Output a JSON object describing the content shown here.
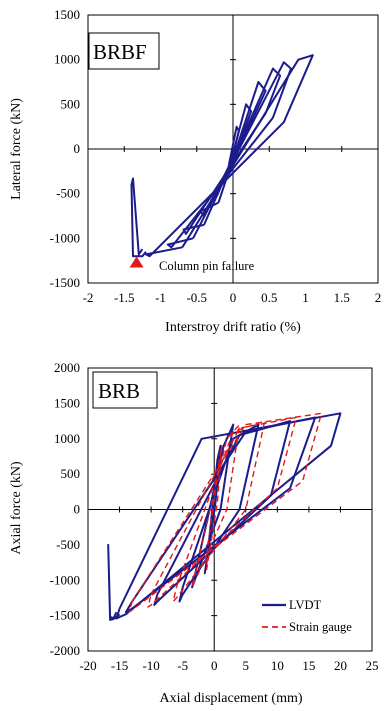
{
  "chart_data": [
    {
      "type": "line",
      "panel_label": "BRBF",
      "xlabel": "Interstroy drift ratio (%)",
      "ylabel": "Lateral force (kN)",
      "xlim": [
        -2,
        2
      ],
      "ylim": [
        -1500,
        1500
      ],
      "xticks": [
        "-2",
        "-1.5",
        "-1",
        "-0.5",
        "0",
        "0.5",
        "1",
        "1.5",
        "2"
      ],
      "yticks": [
        "1500",
        "1000",
        "500",
        "0",
        "-500",
        "-1000",
        "-1500"
      ],
      "grid": false,
      "annotation": {
        "text": "Column pin failure",
        "marker": "red-triangle",
        "x": -1.33,
        "y": -1270
      },
      "colors": {
        "series": "#1c1c8c",
        "marker": "#e31a1a"
      },
      "series": [
        {
          "color": "#1c1c8c",
          "loops": [
            {
              "x": [
                -0.05,
                0.05,
                0.08,
                0.02,
                -0.08,
                -0.05
              ],
              "y": [
                -150,
                250,
                200,
                0,
                -300,
                -150
              ]
            },
            {
              "x": [
                -0.1,
                0.18,
                0.25,
                0.15,
                -0.22,
                -0.25,
                -0.1
              ],
              "y": [
                -350,
                500,
                420,
                200,
                -520,
                -480,
                -350
              ]
            },
            {
              "x": [
                -0.2,
                0.35,
                0.45,
                0.28,
                -0.4,
                -0.45,
                -0.2
              ],
              "y": [
                -600,
                750,
                650,
                350,
                -750,
                -700,
                -600
              ]
            },
            {
              "x": [
                -0.4,
                0.55,
                0.65,
                0.45,
                -0.65,
                -0.68,
                -0.4
              ],
              "y": [
                -850,
                900,
                820,
                400,
                -950,
                -900,
                -850
              ]
            },
            {
              "x": [
                -0.55,
                0.7,
                0.8,
                0.55,
                -0.85,
                -0.9,
                -0.55
              ],
              "y": [
                -1000,
                970,
                900,
                350,
                -1100,
                -1070,
                -1000
              ]
            },
            {
              "x": [
                -0.7,
                0.9,
                1.1,
                0.7,
                -1.15,
                -1.2,
                -0.7
              ],
              "y": [
                -1100,
                1000,
                1050,
                300,
                -1200,
                -1180,
                -1100
              ]
            }
          ],
          "tail": {
            "x": [
              -1.2,
              -1.25,
              -1.38,
              -1.4,
              -1.38,
              -1.3,
              -1.25
            ],
            "y": [
              -1150,
              -1200,
              -1200,
              -400,
              -330,
              -1180,
              -1120
            ]
          }
        }
      ]
    },
    {
      "type": "line",
      "panel_label": "BRB",
      "xlabel": "Axial displacement (mm)",
      "ylabel": "Axial force (kN)",
      "xlim": [
        -20,
        25
      ],
      "ylim": [
        -2000,
        2000
      ],
      "xticks": [
        "-20",
        "-15",
        "-10",
        "-5",
        "0",
        "5",
        "10",
        "15",
        "20",
        "25"
      ],
      "yticks": [
        "2000",
        "1500",
        "1000",
        "500",
        "0",
        "-500",
        "-1000",
        "-1500",
        "-2000"
      ],
      "grid": false,
      "legend": {
        "position": "bottom-right",
        "entries": [
          "LVDT",
          "Strain gauge"
        ]
      },
      "series": [
        {
          "name": "LVDT",
          "color": "#1c1c8c",
          "dash": "solid",
          "loops": [
            {
              "x": [
                -1,
                0.5,
                1,
                0.2,
                -1.5,
                -1
              ],
              "y": [
                -600,
                700,
                900,
                100,
                -900,
                -600
              ]
            },
            {
              "x": [
                -3,
                1.5,
                3,
                1,
                -3.5,
                -3
              ],
              "y": [
                -900,
                900,
                1200,
                0,
                -1100,
                -900
              ]
            },
            {
              "x": [
                -5,
                3,
                7,
                4,
                -5,
                -5.5,
                -5
              ],
              "y": [
                -1100,
                1000,
                1200,
                0,
                -1200,
                -1300,
                -1100
              ]
            },
            {
              "x": [
                -9,
                4,
                12,
                9,
                -9,
                -9.5,
                -9
              ],
              "y": [
                -1200,
                1050,
                1250,
                200,
                -1300,
                -1350,
                -1200
              ]
            },
            {
              "x": [
                -13,
                5,
                16,
                12,
                -13,
                -14,
                -13
              ],
              "y": [
                -1300,
                1100,
                1300,
                300,
                -1400,
                -1450,
                -1300
              ]
            },
            {
              "x": [
                -15,
                -2,
                20,
                18.5,
                -14,
                -15.5,
                -15
              ],
              "y": [
                -1400,
                1000,
                1360,
                900,
                -1480,
                -1540,
                -1400
              ]
            }
          ],
          "tail": {
            "x": [
              -15.5,
              -16,
              -16.5,
              -16.8,
              -16.5,
              -15.8,
              -15
            ],
            "y": [
              -1450,
              -1550,
              -1560,
              -500,
              -1520,
              -1540,
              -1480
            ]
          }
        },
        {
          "name": "Strain gauge",
          "color": "#e31a1a",
          "dash": "dashed",
          "loops": [
            {
              "x": [
                -1,
                0.8,
                1.2,
                0.5,
                -1.2,
                -1
              ],
              "y": [
                -500,
                700,
                900,
                100,
                -850,
                -500
              ]
            },
            {
              "x": [
                -3,
                2,
                4,
                2,
                -3.5,
                -3
              ],
              "y": [
                -900,
                1000,
                1200,
                0,
                -1100,
                -900
              ]
            },
            {
              "x": [
                -6,
                3,
                8,
                5,
                -6,
                -6.5,
                -6
              ],
              "y": [
                -1100,
                1100,
                1250,
                0,
                -1250,
                -1300,
                -1100
              ]
            },
            {
              "x": [
                -10,
                4,
                13,
                10,
                -10,
                -10.5,
                -10
              ],
              "y": [
                -1200,
                1150,
                1300,
                300,
                -1350,
                -1380,
                -1200
              ]
            },
            {
              "x": [
                -13,
                5,
                17,
                14,
                -13,
                -13.5,
                -13
              ],
              "y": [
                -1300,
                1200,
                1360,
                400,
                -1420,
                -1450,
                -1300
              ]
            }
          ]
        }
      ]
    }
  ]
}
